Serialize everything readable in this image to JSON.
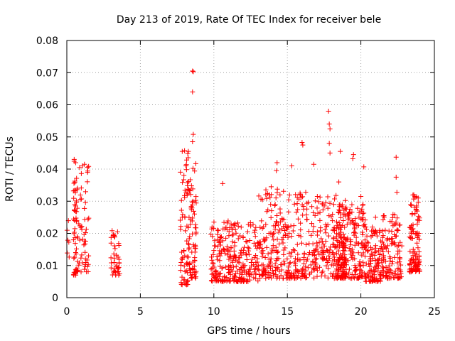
{
  "chart_data": {
    "type": "scatter",
    "title": "Day 213 of 2019, Rate Of TEC Index for receiver bele",
    "xlabel": "GPS time / hours",
    "ylabel": "ROTI / TECUs",
    "xlim": [
      0,
      25
    ],
    "ylim": [
      0,
      0.08
    ],
    "grid": true,
    "marker": "+",
    "marker_color": "#ff0000",
    "x_ticks": [
      {
        "value": 0,
        "label": "0"
      },
      {
        "value": 5,
        "label": "5"
      },
      {
        "value": 10,
        "label": "10"
      },
      {
        "value": 15,
        "label": "15"
      },
      {
        "value": 20,
        "label": "20"
      },
      {
        "value": 25,
        "label": "25"
      }
    ],
    "y_ticks": [
      {
        "value": 0,
        "label": "0"
      },
      {
        "value": 0.01,
        "label": "0.01"
      },
      {
        "value": 0.02,
        "label": "0.02"
      },
      {
        "value": 0.03,
        "label": "0.03"
      },
      {
        "value": 0.04,
        "label": "0.04"
      },
      {
        "value": 0.05,
        "label": "0.05"
      },
      {
        "value": 0.06,
        "label": "0.06"
      },
      {
        "value": 0.07,
        "label": "0.07"
      },
      {
        "value": 0.08,
        "label": "0.08"
      }
    ],
    "clusters": [
      {
        "x_start": 0.0,
        "x_end": 0.3,
        "y_min": 0.012,
        "y_max": 0.027,
        "count": 6
      },
      {
        "x_start": 0.45,
        "x_end": 0.75,
        "y_min": 0.007,
        "y_max": 0.043,
        "count": 55
      },
      {
        "x_start": 0.8,
        "x_end": 1.5,
        "y_min": 0.008,
        "y_max": 0.042,
        "count": 50
      },
      {
        "x_start": 3.0,
        "x_end": 3.6,
        "y_min": 0.007,
        "y_max": 0.021,
        "count": 40
      },
      {
        "x_start": 7.7,
        "x_end": 8.3,
        "y_min": 0.004,
        "y_max": 0.046,
        "count": 70
      },
      {
        "x_start": 8.3,
        "x_end": 8.8,
        "y_min": 0.006,
        "y_max": 0.042,
        "count": 70
      },
      {
        "x_start": 9.8,
        "x_end": 13.0,
        "y_min": 0.005,
        "y_max": 0.024,
        "count": 260
      },
      {
        "x_start": 13.0,
        "x_end": 16.5,
        "y_min": 0.006,
        "y_max": 0.034,
        "count": 280
      },
      {
        "x_start": 16.5,
        "x_end": 19.0,
        "y_min": 0.006,
        "y_max": 0.032,
        "count": 200
      },
      {
        "x_start": 18.3,
        "x_end": 20.3,
        "y_min": 0.006,
        "y_max": 0.029,
        "count": 220
      },
      {
        "x_start": 20.3,
        "x_end": 21.5,
        "y_min": 0.005,
        "y_max": 0.022,
        "count": 120
      },
      {
        "x_start": 21.5,
        "x_end": 22.8,
        "y_min": 0.006,
        "y_max": 0.026,
        "count": 110
      },
      {
        "x_start": 23.3,
        "x_end": 24.0,
        "y_min": 0.008,
        "y_max": 0.032,
        "count": 110
      }
    ],
    "notable_points": [
      [
        8.55,
        0.0705
      ],
      [
        8.6,
        0.0703
      ],
      [
        8.55,
        0.064
      ],
      [
        8.6,
        0.0508
      ],
      [
        8.55,
        0.0485
      ],
      [
        17.8,
        0.058
      ],
      [
        17.85,
        0.054
      ],
      [
        17.9,
        0.0525
      ],
      [
        17.85,
        0.048
      ],
      [
        17.9,
        0.045
      ],
      [
        16.0,
        0.0483
      ],
      [
        16.05,
        0.0475
      ],
      [
        18.6,
        0.0455
      ],
      [
        19.5,
        0.0445
      ],
      [
        19.45,
        0.0432
      ],
      [
        22.4,
        0.0437
      ],
      [
        22.4,
        0.0375
      ],
      [
        22.45,
        0.0328
      ],
      [
        20.2,
        0.0407
      ],
      [
        20.0,
        0.0315
      ],
      [
        14.3,
        0.042
      ],
      [
        14.25,
        0.0395
      ],
      [
        16.8,
        0.0415
      ],
      [
        15.3,
        0.041
      ],
      [
        10.6,
        0.0355
      ],
      [
        13.9,
        0.0345
      ],
      [
        14.5,
        0.032
      ],
      [
        18.5,
        0.036
      ],
      [
        21.0,
        0.025
      ],
      [
        23.6,
        0.032
      ],
      [
        23.9,
        0.031
      ],
      [
        0.5,
        0.043
      ],
      [
        0.6,
        0.042
      ],
      [
        1.2,
        0.0415
      ],
      [
        7.85,
        0.0455
      ],
      [
        8.1,
        0.041
      ],
      [
        12.3,
        0.0205
      ],
      [
        11.4,
        0.0225
      ],
      [
        10.9,
        0.0212
      ],
      [
        3.45,
        0.0205
      ]
    ]
  }
}
